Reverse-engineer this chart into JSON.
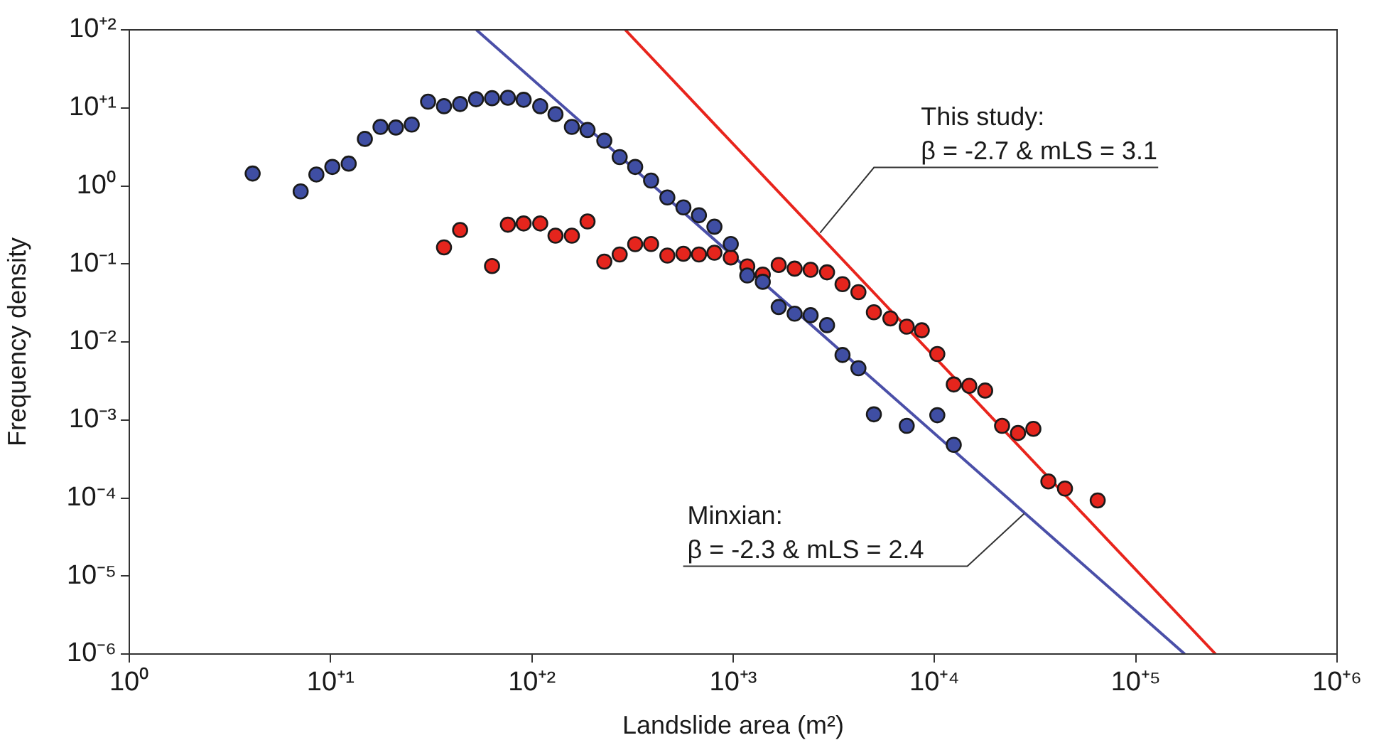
{
  "chart_data": {
    "type": "scatter",
    "xlabel": "Landslide area (m²)",
    "ylabel": "Frequency density",
    "log": "xy",
    "grid": false,
    "legend": false,
    "marker": "circle",
    "xlim": [
      1,
      1000000
    ],
    "ylim": [
      1e-06,
      100
    ],
    "xticks": [
      {
        "value": 1,
        "label": "10⁰"
      },
      {
        "value": 10,
        "label": "10⁺¹"
      },
      {
        "value": 100,
        "label": "10⁺²"
      },
      {
        "value": 1000,
        "label": "10⁺³"
      },
      {
        "value": 10000,
        "label": "10⁺⁴"
      },
      {
        "value": 100000,
        "label": "10⁺⁵"
      },
      {
        "value": 1000000,
        "label": "10⁺⁶"
      }
    ],
    "yticks": [
      {
        "value": 1e-06,
        "label": "10⁻⁶"
      },
      {
        "value": 1e-05,
        "label": "10⁻⁵"
      },
      {
        "value": 0.0001,
        "label": "10⁻⁴"
      },
      {
        "value": 0.001,
        "label": "10⁻³"
      },
      {
        "value": 0.01,
        "label": "10⁻²"
      },
      {
        "value": 0.1,
        "label": "10⁻¹"
      },
      {
        "value": 1,
        "label": "10⁰"
      },
      {
        "value": 10,
        "label": "10⁺¹"
      },
      {
        "value": 100,
        "label": "10⁺²"
      }
    ],
    "series": [
      {
        "color": "#3f4ea3",
        "x": [
          4.1,
          7.1,
          8.5,
          10.2,
          12.3,
          14.8,
          17.7,
          21.1,
          25.3,
          30.5,
          36.6,
          44,
          52.8,
          63.4,
          76,
          91,
          110,
          131,
          158,
          189,
          229,
          273,
          326,
          391,
          471,
          566,
          676,
          807,
          973,
          1175,
          1403,
          1683,
          2020,
          2425,
          2926,
          3493,
          4190,
          5000,
          7280,
          10330,
          12470
        ],
        "values": [
          1.44,
          0.85,
          1.4,
          1.75,
          1.93,
          4.0,
          5.7,
          5.6,
          6.1,
          12.0,
          10.5,
          11.2,
          12.9,
          13.3,
          13.5,
          12.7,
          10.5,
          8.3,
          5.7,
          5.2,
          3.8,
          2.34,
          1.75,
          1.17,
          0.71,
          0.53,
          0.42,
          0.3,
          0.18,
          0.071,
          0.059,
          0.028,
          0.023,
          0.022,
          0.0164,
          0.0068,
          0.0046,
          0.00118,
          0.00084,
          0.00115,
          0.00048
        ]
      },
      {
        "color": "#e5251d",
        "x": [
          36.6,
          44,
          63.4,
          76,
          91,
          110,
          131,
          158,
          189,
          229,
          273,
          326,
          391,
          471,
          566,
          676,
          807,
          973,
          1175,
          1403,
          1683,
          2020,
          2425,
          2926,
          3493,
          4190,
          5000,
          6040,
          7280,
          8650,
          10330,
          12470,
          14890,
          17860,
          21670,
          26000,
          31000,
          36800,
          44500,
          64700
        ],
        "values": [
          0.163,
          0.272,
          0.094,
          0.318,
          0.33,
          0.33,
          0.23,
          0.23,
          0.35,
          0.107,
          0.132,
          0.179,
          0.18,
          0.128,
          0.135,
          0.132,
          0.139,
          0.121,
          0.093,
          0.073,
          0.097,
          0.087,
          0.084,
          0.078,
          0.055,
          0.0435,
          0.024,
          0.02,
          0.0157,
          0.0141,
          0.007,
          0.00285,
          0.00274,
          0.00238,
          0.00084,
          0.00068,
          0.00077,
          0.000163,
          0.000132,
          9.3e-05
        ]
      },
      {
        "type": "line",
        "color": "#4a4fa8",
        "marker": "none",
        "x": [
          53,
          175000
        ],
        "values": [
          100,
          1e-06
        ]
      },
      {
        "type": "line",
        "color": "#e8241c",
        "marker": "none",
        "x": [
          291,
          249000
        ],
        "values": [
          100,
          1e-06
        ]
      }
    ],
    "annotations": [
      {
        "text": "This study:\nβ = -2.7 & mLS = 3.1",
        "x": 2700,
        "y": 0.25
      },
      {
        "text": "Minxian:\nβ = -2.3 & mLS = 2.4",
        "x": 27900,
        "y": 6.3e-05
      }
    ]
  }
}
